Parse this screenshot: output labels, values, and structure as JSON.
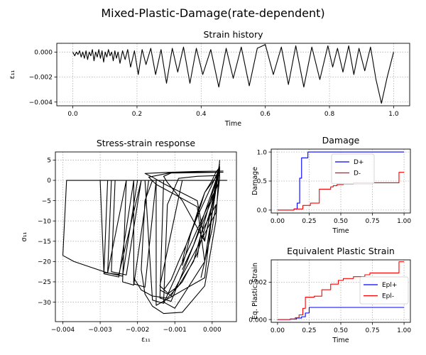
{
  "figure": {
    "suptitle": "Mixed-Plastic-Damage(rate-dependent)"
  },
  "chart_data": [
    {
      "id": "strain",
      "type": "line",
      "title": "Strain history",
      "xlabel": "Time",
      "ylabel": "ε₁₁",
      "xlim": [
        -0.05,
        1.05
      ],
      "ylim": [
        -0.0043,
        0.0007
      ],
      "xticks": [
        0,
        0.2,
        0.4,
        0.6,
        0.8,
        1.0
      ],
      "xtick_labels": [
        "0.0",
        "0.2",
        "0.4",
        "0.6",
        "0.8",
        "1.0"
      ],
      "yticks": [
        -0.004,
        -0.002,
        0.0
      ],
      "ytick_labels": [
        "−0.004",
        "−0.002",
        "0.000"
      ],
      "grid": true,
      "series": [
        {
          "color": "#000000",
          "x": [
            0.0,
            0.006,
            0.011,
            0.016,
            0.021,
            0.026,
            0.031,
            0.036,
            0.041,
            0.046,
            0.051,
            0.056,
            0.061,
            0.066,
            0.071,
            0.076,
            0.081,
            0.086,
            0.091,
            0.096,
            0.101,
            0.106,
            0.111,
            0.116,
            0.121,
            0.126,
            0.131,
            0.136,
            0.141,
            0.147,
            0.155,
            0.163,
            0.171,
            0.18,
            0.192,
            0.204,
            0.216,
            0.228,
            0.243,
            0.258,
            0.275,
            0.292,
            0.31,
            0.327,
            0.345,
            0.365,
            0.385,
            0.405,
            0.43,
            0.455,
            0.478,
            0.5,
            0.525,
            0.55,
            0.575,
            0.6,
            0.625,
            0.65,
            0.672,
            0.695,
            0.72,
            0.745,
            0.77,
            0.795,
            0.81,
            0.825,
            0.842,
            0.86,
            0.876,
            0.892,
            0.91,
            0.928,
            0.945,
            0.962,
            0.98,
            1.0
          ],
          "y": [
            0.0,
            -0.0003,
            0.0,
            -0.0002,
            0.0001,
            -0.0004,
            0.0,
            -0.0005,
            0.0001,
            -0.0006,
            0.0,
            -0.0003,
            0.0002,
            -0.0007,
            0.0,
            -0.0004,
            0.0002,
            -0.0005,
            0.0001,
            -0.0008,
            0.0,
            -0.0004,
            0.0002,
            -0.0003,
            0.0,
            -0.0007,
            0.0001,
            -0.0005,
            0.0,
            -0.0009,
            0.0001,
            -0.0006,
            0.0002,
            -0.0012,
            0.0001,
            -0.0018,
            0.0002,
            -0.001,
            0.0003,
            -0.0018,
            0.0002,
            -0.0025,
            0.0003,
            -0.0016,
            0.0004,
            -0.0025,
            0.0003,
            -0.0018,
            0.0002,
            -0.0028,
            0.0003,
            -0.0021,
            0.0004,
            -0.0027,
            0.0003,
            0.0006,
            -0.0018,
            0.0004,
            -0.0026,
            0.0005,
            -0.0028,
            0.0004,
            -0.0022,
            0.0005,
            -0.0012,
            0.0003,
            -0.0016,
            0.0005,
            -0.0018,
            0.0003,
            -0.0015,
            0.0004,
            -0.0022,
            -0.0041,
            -0.002,
            0.0
          ]
        }
      ]
    },
    {
      "id": "stress",
      "type": "line",
      "title": "Stress-strain response",
      "xlabel": "ε₁₁",
      "ylabel": "σ₁₁",
      "xlim": [
        -0.0042,
        0.00065
      ],
      "ylim": [
        -34.8,
        7.0
      ],
      "xticks": [
        -0.004,
        -0.003,
        -0.002,
        -0.001,
        0.0
      ],
      "xtick_labels": [
        "−0.004",
        "−0.003",
        "−0.002",
        "−0.001",
        "0.000"
      ],
      "yticks": [
        5,
        0,
        -5,
        -10,
        -15,
        -20,
        -25,
        -30
      ],
      "ytick_labels": [
        "5",
        "0",
        "−5",
        "−10",
        "−15",
        "−20",
        "−25",
        "−30"
      ],
      "grid": true,
      "series": [
        {
          "color": "#000000",
          "x": [
            0.0004,
            0.0,
            -0.0008,
            -0.0016,
            -0.0024,
            -0.0032,
            -0.0039,
            -0.004,
            -0.0037,
            -0.0028,
            -0.0023,
            0.0004,
            null,
            0.0002,
            -0.0008,
            -0.0016,
            -0.0024,
            -0.003,
            -0.0029,
            -0.0025,
            -0.0019,
            0.0002,
            null,
            0.0002,
            -0.0008,
            -0.0018,
            -0.0028,
            -0.0029,
            -0.0025,
            -0.0021,
            0.0002,
            null,
            0.0002,
            -0.0008,
            -0.0018,
            -0.0027,
            -0.0028,
            -0.0024,
            -0.002,
            0.0002,
            null,
            0.0002,
            -0.0008,
            -0.0017,
            -0.0026,
            -0.0027,
            -0.0023,
            -0.0019,
            0.0002,
            null,
            0.0002,
            -0.0008,
            -0.0016,
            -0.0023,
            -0.0024,
            -0.0021,
            -0.0017,
            0.0002,
            null,
            0.0002,
            -0.0008,
            -0.0016,
            -0.0021,
            -0.0021,
            -0.0018,
            -0.0015,
            0.0002,
            null,
            0.0002,
            -0.0006,
            -0.0013,
            -0.0018,
            -0.0016,
            -0.0013,
            0.0002,
            null,
            0.0002,
            -0.0007,
            -0.0013,
            -0.0014,
            -0.0011,
            0.0002,
            null,
            0.0003,
            -0.0004,
            -0.0011,
            -0.0017,
            -0.0015,
            -0.0004,
            -0.0002,
            0.0002,
            null,
            0.0003,
            -0.0004,
            -0.0011,
            -0.0018,
            -0.0016,
            -0.0013,
            -0.0004,
            -0.0002,
            0.0002,
            null,
            0.0002,
            -0.0004,
            -0.0011,
            -0.0013,
            -0.0012,
            -0.0008,
            -0.0002,
            0.0002,
            null,
            0.0002,
            -0.0008,
            -0.0014,
            -0.0011,
            0.0001,
            0.0002,
            null,
            0.0001,
            -0.0009,
            -0.0015,
            -0.0015,
            -0.0002,
            0.0001,
            null,
            0.0002,
            -0.0004,
            -0.0009,
            -0.0012,
            -0.0013,
            -0.001,
            -0.0002,
            0.0002,
            null,
            -0.0008,
            -0.0005,
            -0.0002,
            0.0001,
            0.0002,
            -0.0004,
            -0.0007,
            -0.0008,
            null,
            -0.0003,
            -0.0002,
            0.0,
            0.0001,
            -0.0003,
            -0.0004,
            null,
            0.0004,
            -0.0002,
            -0.0008,
            -0.0013,
            -0.0016,
            -0.0018,
            -0.0019,
            -0.0018,
            -0.0016,
            -0.0013,
            -0.0008,
            -0.0002,
            0.0001,
            0.0002,
            null,
            0.0002,
            -0.0008,
            -0.0016,
            -0.0021,
            -0.0021,
            -0.0019,
            -0.0016,
            -0.0012,
            -0.0008,
            -0.0004,
            -0.0002,
            0.0,
            0.0001,
            0.0002,
            null,
            -0.0014,
            -0.0012,
            -0.0009,
            -0.0005,
            -0.0002,
            0.0001,
            0.0002,
            null,
            0.0002,
            -0.0002,
            -0.0004,
            -0.0006,
            -0.0007,
            -0.0008,
            null,
            -0.0013,
            -0.0011,
            -0.0009,
            -0.0007,
            -0.0005,
            -0.0003,
            -0.0002,
            0.0,
            0.0001,
            0.0002,
            0.0002
          ],
          "y": [
            0.0,
            0.0,
            0.0,
            0.0,
            0.0,
            0.0,
            0.0,
            -18.5,
            -20.0,
            -22.8,
            0.0,
            0.0,
            null,
            0.0,
            0.0,
            0.0,
            0.0,
            0.0,
            -22.7,
            -23.2,
            0.0,
            0.0,
            null,
            0.0,
            0.0,
            0.0,
            0.0,
            -23.0,
            -23.8,
            0.0,
            0.0,
            null,
            0.0,
            0.0,
            0.0,
            0.0,
            -22.8,
            -23.6,
            0.0,
            0.0,
            null,
            0.0,
            0.0,
            0.0,
            0.0,
            -22.5,
            -23.3,
            0.0,
            0.0,
            null,
            0.0,
            0.0,
            0.0,
            0.0,
            -25.0,
            -25.8,
            0.0,
            0.0,
            null,
            0.0,
            0.0,
            0.0,
            0.0,
            -25.5,
            -26.3,
            0.0,
            0.0,
            null,
            0.0,
            0.0,
            0.0,
            0.0,
            -29.5,
            -30.3,
            0.0,
            null,
            0.0,
            0.0,
            0.0,
            -29.0,
            -29.8,
            0.0,
            null,
            2.0,
            2.0,
            1.9,
            0.8,
            -1.0,
            -6.5,
            -20.0,
            4.5,
            null,
            2.3,
            2.2,
            2.0,
            1.7,
            0.8,
            -0.8,
            -5.0,
            -15.0,
            3.0,
            null,
            2.0,
            1.9,
            1.8,
            1.0,
            -0.5,
            -5.0,
            -15.0,
            4.0,
            null,
            0.0,
            0.0,
            -26.0,
            -28.5,
            -8.0,
            0.5,
            null,
            0.0,
            0.0,
            0.0,
            -30.8,
            -24.0,
            0.0,
            null,
            1.2,
            1.0,
            0.5,
            -6.0,
            -30.0,
            -31.5,
            -20.0,
            3.5,
            null,
            -22.0,
            -16.0,
            -8.0,
            0.0,
            3.0,
            -9.0,
            -16.0,
            -20.0,
            null,
            -24.0,
            -20.0,
            -12.0,
            -6.0,
            -13.0,
            -19.0,
            null,
            0.0,
            0.0,
            0.0,
            0.0,
            0.0,
            -5.0,
            -22.0,
            -28.0,
            -31.0,
            -32.8,
            -32.5,
            -26.0,
            -10.0,
            5.0,
            null,
            0.0,
            0.0,
            0.0,
            0.0,
            -24.0,
            -27.0,
            -28.5,
            -29.0,
            -25.0,
            -18.0,
            -12.0,
            -6.0,
            0.0,
            3.5,
            null,
            -27.0,
            -28.0,
            -26.0,
            -20.0,
            -10.0,
            0.0,
            4.0,
            null,
            2.0,
            -3.0,
            -8.0,
            -14.0,
            -18.0,
            -21.0,
            null,
            -27.0,
            -24.5,
            -20.0,
            -16.0,
            -11.0,
            -6.0,
            -3.0,
            0.0,
            2.0,
            3.2,
            0.5
          ]
        }
      ]
    },
    {
      "id": "damage",
      "type": "line",
      "title": "Damage",
      "xlabel": "Time",
      "ylabel": "Damage",
      "xlim": [
        -0.05,
        1.05
      ],
      "ylim": [
        -0.05,
        1.05
      ],
      "xticks": [
        0,
        0.25,
        0.5,
        0.75,
        1.0
      ],
      "xtick_labels": [
        "0.00",
        "0.25",
        "0.50",
        "0.75",
        "1.00"
      ],
      "yticks": [
        0.0,
        0.5,
        1.0
      ],
      "ytick_labels": [
        "0.0",
        "0.5",
        "1.0"
      ],
      "grid": true,
      "legend": "upper-center",
      "series": [
        {
          "name": "D+",
          "color": "#0000ff",
          "step": true,
          "x": [
            0.0,
            0.13,
            0.13,
            0.155,
            0.155,
            0.175,
            0.175,
            0.19,
            0.19,
            0.24,
            0.24,
            1.0
          ],
          "y": [
            0.0,
            0.0,
            0.02,
            0.02,
            0.12,
            0.12,
            0.55,
            0.55,
            0.9,
            0.9,
            1.0,
            1.0
          ]
        },
        {
          "name": "D-",
          "color": "#ff0000",
          "step": true,
          "x": [
            0.0,
            0.13,
            0.13,
            0.2,
            0.2,
            0.26,
            0.26,
            0.33,
            0.33,
            0.42,
            0.42,
            0.44,
            0.44,
            0.47,
            0.47,
            0.52,
            0.52,
            0.6,
            0.6,
            0.96,
            0.96,
            1.0
          ],
          "y": [
            0.0,
            0.0,
            0.02,
            0.02,
            0.08,
            0.08,
            0.12,
            0.12,
            0.36,
            0.36,
            0.4,
            0.4,
            0.42,
            0.42,
            0.44,
            0.44,
            0.45,
            0.45,
            0.47,
            0.47,
            0.65,
            0.65
          ]
        }
      ]
    },
    {
      "id": "plastic",
      "type": "line",
      "title": "Equivalent Plastic Strain",
      "xlabel": "Time",
      "ylabel": "Eq. Plastic Strain",
      "xlim": [
        -0.05,
        1.05
      ],
      "ylim": [
        -0.00015,
        0.0032
      ],
      "xticks": [
        0,
        0.25,
        0.5,
        0.75,
        1.0
      ],
      "xtick_labels": [
        "0.00",
        "0.25",
        "0.50",
        "0.75",
        "1.00"
      ],
      "yticks": [
        0.0,
        0.002
      ],
      "ytick_labels": [
        "0.000",
        "0.002"
      ],
      "grid": true,
      "legend": "center-right",
      "series": [
        {
          "name": "Epl+",
          "color": "#0000ff",
          "step": true,
          "x": [
            0.0,
            0.1,
            0.1,
            0.15,
            0.15,
            0.19,
            0.19,
            0.22,
            0.22,
            0.25,
            0.25,
            1.0
          ],
          "y": [
            0.0,
            0.0,
            3e-05,
            3e-05,
            8e-05,
            8e-05,
            0.00015,
            0.00015,
            0.00035,
            0.00035,
            0.00065,
            0.00065
          ]
        },
        {
          "name": "Epl-",
          "color": "#ff0000",
          "step": true,
          "x": [
            0.0,
            0.1,
            0.1,
            0.14,
            0.14,
            0.17,
            0.17,
            0.2,
            0.2,
            0.22,
            0.22,
            0.29,
            0.29,
            0.35,
            0.35,
            0.42,
            0.42,
            0.48,
            0.48,
            0.52,
            0.52,
            0.6,
            0.6,
            0.69,
            0.69,
            0.73,
            0.73,
            0.96,
            0.96,
            1.0
          ],
          "y": [
            0.0,
            0.0,
            3e-05,
            3e-05,
            0.0001,
            0.0001,
            0.00025,
            0.00025,
            0.0006,
            0.0006,
            0.0012,
            0.0012,
            0.00125,
            0.00125,
            0.0016,
            0.0016,
            0.0019,
            0.0019,
            0.0021,
            0.0021,
            0.0022,
            0.0022,
            0.0023,
            0.0023,
            0.0024,
            0.0024,
            0.0025,
            0.0025,
            0.0031,
            0.0031
          ]
        }
      ]
    }
  ]
}
